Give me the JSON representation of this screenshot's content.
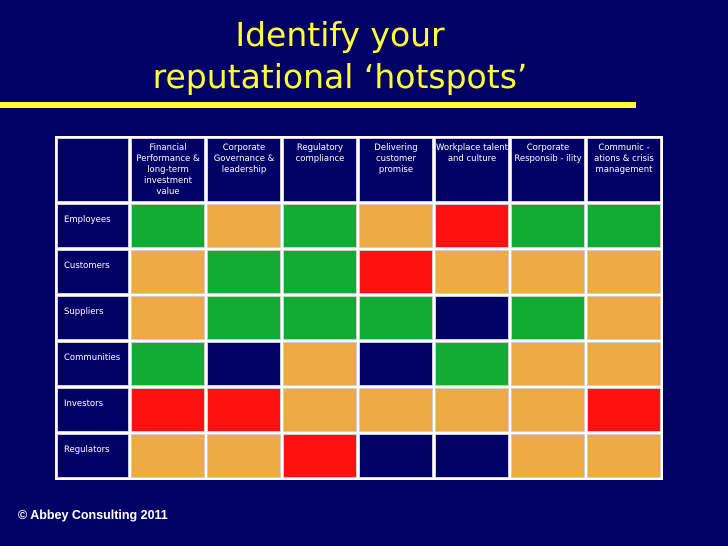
{
  "title_line1": "Identify your",
  "title_line2": "reputational ‘hotspots’",
  "columns": [
    "Financial Performance & long-term investment value",
    "Corporate Governance & leadership",
    "Regulatory compliance",
    "Delivering customer promise",
    "Workplace talent and culture",
    "Corporate Responsib - ility",
    "Communic - ations & crisis management"
  ],
  "colors": {
    "green": "#11aa33",
    "amber": "#eeaa44",
    "red": "#ff1111",
    "navy": "#000066"
  },
  "rows": [
    {
      "label": "Employees",
      "cells": [
        "green",
        "amber",
        "green",
        "amber",
        "red",
        "green",
        "green"
      ]
    },
    {
      "label": "Customers",
      "cells": [
        "amber",
        "green",
        "green",
        "red",
        "amber",
        "amber",
        "amber"
      ]
    },
    {
      "label": "Suppliers",
      "cells": [
        "amber",
        "green",
        "green",
        "green",
        "navy",
        "green",
        "amber"
      ]
    },
    {
      "label": "Communities",
      "cells": [
        "green",
        "navy",
        "amber",
        "navy",
        "green",
        "amber",
        "amber"
      ]
    },
    {
      "label": "Investors",
      "cells": [
        "red",
        "red",
        "amber",
        "amber",
        "amber",
        "amber",
        "red"
      ]
    },
    {
      "label": "Regulators",
      "cells": [
        "amber",
        "amber",
        "red",
        "navy",
        "navy",
        "amber",
        "amber"
      ]
    }
  ],
  "footer": "© Abbey Consulting 2011"
}
